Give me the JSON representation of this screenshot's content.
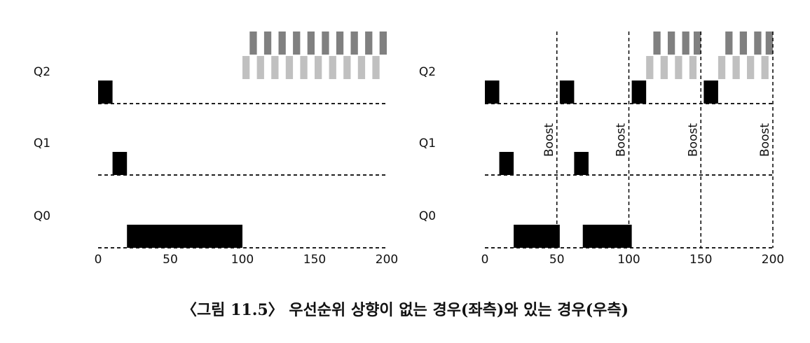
{
  "caption": "〈그림 11.5〉 우선순위 상향이 없는 경우(좌측)와 있는 경우(우측)",
  "chart_data": [
    {
      "type": "schedule",
      "rows": [
        "Q2",
        "Q1",
        "Q0"
      ],
      "xlim": [
        0,
        200
      ],
      "xticks": [
        0,
        50,
        100,
        150,
        200
      ],
      "blocks": [
        {
          "row": 0,
          "level": 0,
          "start": 0,
          "end": 10,
          "color": "#000000"
        },
        {
          "row": 1,
          "level": 0,
          "start": 10,
          "end": 20,
          "color": "#000000"
        },
        {
          "row": 2,
          "level": 0,
          "start": 20,
          "end": 100,
          "color": "#000000"
        },
        {
          "row": 0,
          "level": 1,
          "start": 100,
          "end": 105,
          "color": "#c0c0c0"
        },
        {
          "row": 0,
          "level": 1,
          "start": 110,
          "end": 115,
          "color": "#c0c0c0"
        },
        {
          "row": 0,
          "level": 1,
          "start": 120,
          "end": 125,
          "color": "#c0c0c0"
        },
        {
          "row": 0,
          "level": 1,
          "start": 130,
          "end": 135,
          "color": "#c0c0c0"
        },
        {
          "row": 0,
          "level": 1,
          "start": 140,
          "end": 145,
          "color": "#c0c0c0"
        },
        {
          "row": 0,
          "level": 1,
          "start": 150,
          "end": 155,
          "color": "#c0c0c0"
        },
        {
          "row": 0,
          "level": 1,
          "start": 160,
          "end": 165,
          "color": "#c0c0c0"
        },
        {
          "row": 0,
          "level": 1,
          "start": 170,
          "end": 175,
          "color": "#c0c0c0"
        },
        {
          "row": 0,
          "level": 1,
          "start": 180,
          "end": 185,
          "color": "#c0c0c0"
        },
        {
          "row": 0,
          "level": 1,
          "start": 190,
          "end": 195,
          "color": "#c0c0c0"
        },
        {
          "row": 0,
          "level": 2,
          "start": 105,
          "end": 110,
          "color": "#808080"
        },
        {
          "row": 0,
          "level": 2,
          "start": 115,
          "end": 120,
          "color": "#808080"
        },
        {
          "row": 0,
          "level": 2,
          "start": 125,
          "end": 130,
          "color": "#808080"
        },
        {
          "row": 0,
          "level": 2,
          "start": 135,
          "end": 140,
          "color": "#808080"
        },
        {
          "row": 0,
          "level": 2,
          "start": 145,
          "end": 150,
          "color": "#808080"
        },
        {
          "row": 0,
          "level": 2,
          "start": 155,
          "end": 160,
          "color": "#808080"
        },
        {
          "row": 0,
          "level": 2,
          "start": 165,
          "end": 170,
          "color": "#808080"
        },
        {
          "row": 0,
          "level": 2,
          "start": 175,
          "end": 180,
          "color": "#808080"
        },
        {
          "row": 0,
          "level": 2,
          "start": 185,
          "end": 190,
          "color": "#808080"
        },
        {
          "row": 0,
          "level": 2,
          "start": 195,
          "end": 200,
          "color": "#808080"
        }
      ]
    },
    {
      "type": "schedule",
      "rows": [
        "Q2",
        "Q1",
        "Q0"
      ],
      "xlim": [
        0,
        200
      ],
      "xticks": [
        0,
        50,
        100,
        150,
        200
      ],
      "boosts": [
        50,
        100,
        150,
        200
      ],
      "boost_label": "Boost",
      "blocks": [
        {
          "row": 0,
          "level": 0,
          "start": 0,
          "end": 10,
          "color": "#000000"
        },
        {
          "row": 1,
          "level": 0,
          "start": 10,
          "end": 20,
          "color": "#000000"
        },
        {
          "row": 2,
          "level": 0,
          "start": 20,
          "end": 52,
          "color": "#000000"
        },
        {
          "row": 0,
          "level": 0,
          "start": 52,
          "end": 62,
          "color": "#000000"
        },
        {
          "row": 1,
          "level": 0,
          "start": 62,
          "end": 72,
          "color": "#000000"
        },
        {
          "row": 2,
          "level": 0,
          "start": 68,
          "end": 102,
          "color": "#000000"
        },
        {
          "row": 0,
          "level": 0,
          "start": 102,
          "end": 112,
          "color": "#000000"
        },
        {
          "row": 0,
          "level": 0,
          "start": 152,
          "end": 162,
          "color": "#000000"
        },
        {
          "row": 0,
          "level": 1,
          "start": 112,
          "end": 117,
          "color": "#c0c0c0"
        },
        {
          "row": 0,
          "level": 1,
          "start": 122,
          "end": 127,
          "color": "#c0c0c0"
        },
        {
          "row": 0,
          "level": 1,
          "start": 132,
          "end": 137,
          "color": "#c0c0c0"
        },
        {
          "row": 0,
          "level": 1,
          "start": 142,
          "end": 147,
          "color": "#c0c0c0"
        },
        {
          "row": 0,
          "level": 1,
          "start": 162,
          "end": 167,
          "color": "#c0c0c0"
        },
        {
          "row": 0,
          "level": 1,
          "start": 172,
          "end": 177,
          "color": "#c0c0c0"
        },
        {
          "row": 0,
          "level": 1,
          "start": 182,
          "end": 187,
          "color": "#c0c0c0"
        },
        {
          "row": 0,
          "level": 1,
          "start": 192,
          "end": 197,
          "color": "#c0c0c0"
        },
        {
          "row": 0,
          "level": 2,
          "start": 117,
          "end": 122,
          "color": "#808080"
        },
        {
          "row": 0,
          "level": 2,
          "start": 127,
          "end": 132,
          "color": "#808080"
        },
        {
          "row": 0,
          "level": 2,
          "start": 137,
          "end": 142,
          "color": "#808080"
        },
        {
          "row": 0,
          "level": 2,
          "start": 145,
          "end": 150,
          "color": "#808080"
        },
        {
          "row": 0,
          "level": 2,
          "start": 167,
          "end": 172,
          "color": "#808080"
        },
        {
          "row": 0,
          "level": 2,
          "start": 177,
          "end": 182,
          "color": "#808080"
        },
        {
          "row": 0,
          "level": 2,
          "start": 187,
          "end": 192,
          "color": "#808080"
        },
        {
          "row": 0,
          "level": 2,
          "start": 195,
          "end": 200,
          "color": "#808080"
        }
      ]
    }
  ]
}
